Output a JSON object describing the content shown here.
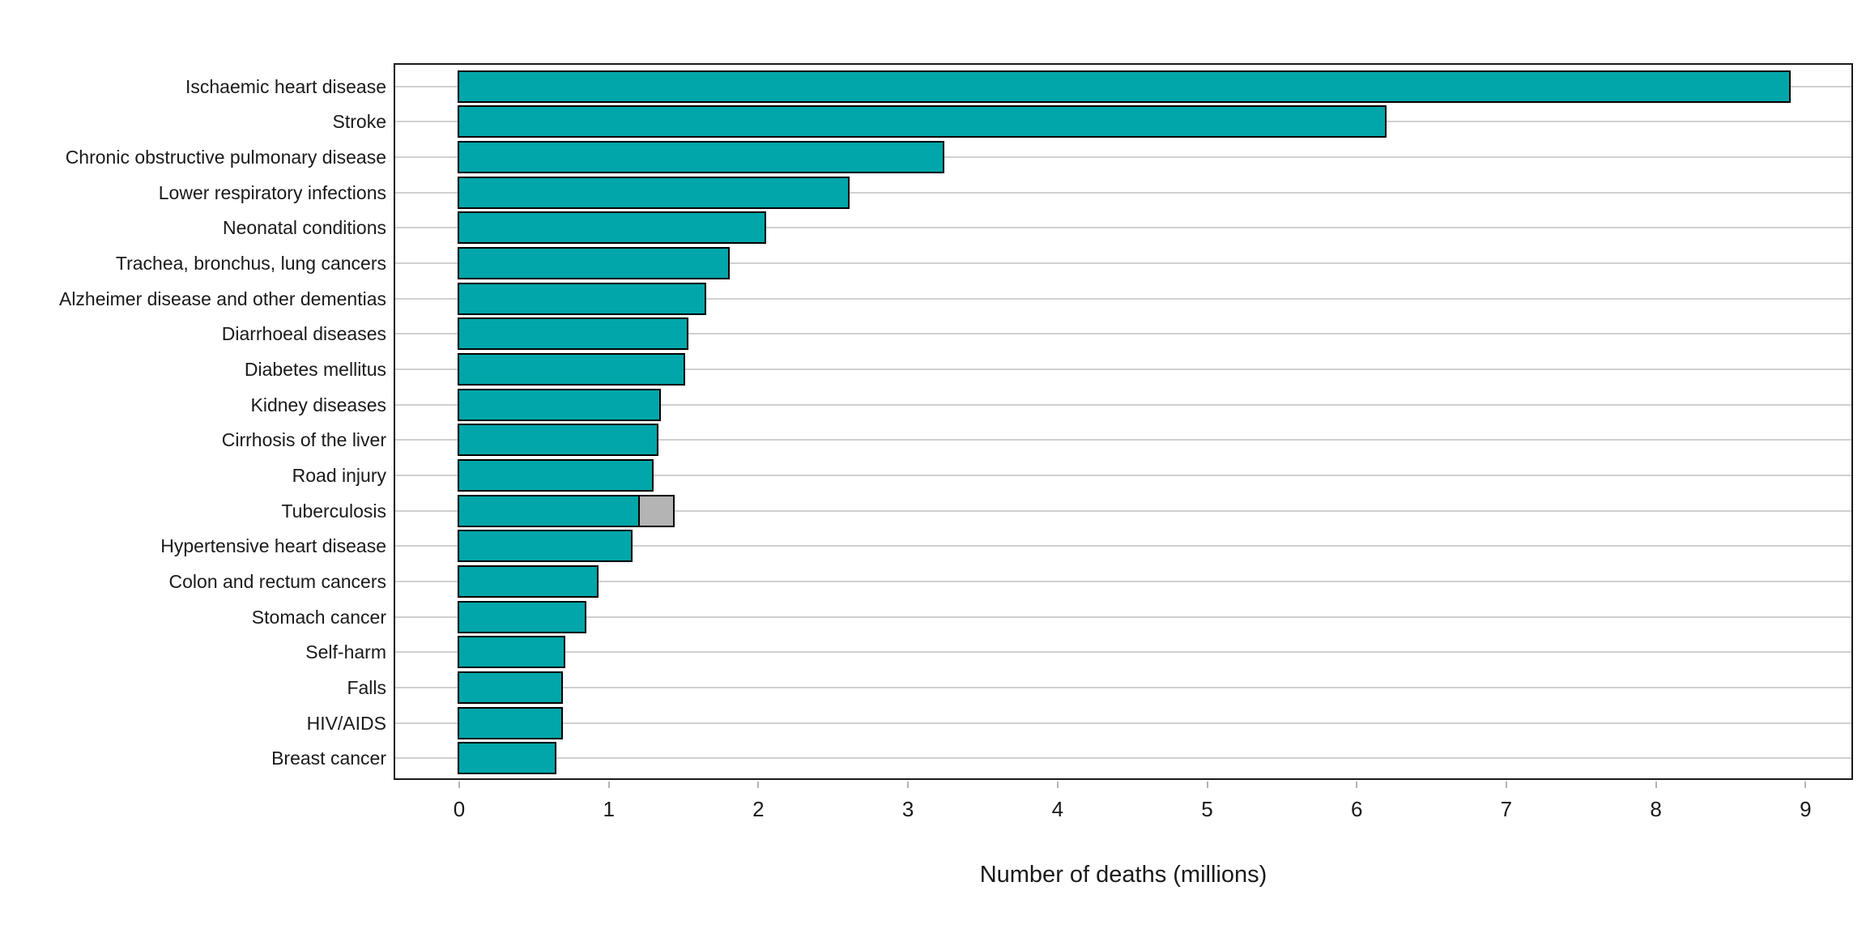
{
  "chart_data": {
    "type": "bar",
    "orientation": "horizontal",
    "title": "",
    "xlabel": "Number of deaths (millions)",
    "ylabel": "",
    "x_ticks": [
      0,
      1,
      2,
      3,
      4,
      5,
      6,
      7,
      8,
      9
    ],
    "xlim": [
      -0.44,
      9.32
    ],
    "grid": "horizontal-only",
    "legend": "none",
    "categories": [
      "Ischaemic heart disease",
      "Stroke",
      "Chronic obstructive pulmonary disease",
      "Lower respiratory infections",
      "Neonatal conditions",
      "Trachea, bronchus, lung cancers",
      "Alzheimer disease and other dementias",
      "Diarrhoeal diseases",
      "Diabetes mellitus",
      "Kidney diseases",
      "Cirrhosis of the liver",
      "Road injury",
      "Tuberculosis",
      "Hypertensive heart disease",
      "Colon and rectum cancers",
      "Stomach cancer",
      "Self-harm",
      "Falls",
      "HIV/AIDS",
      "Breast cancer"
    ],
    "values": [
      8.89,
      6.19,
      3.23,
      2.6,
      2.04,
      1.8,
      1.64,
      1.52,
      1.5,
      1.34,
      1.32,
      1.29,
      1.21,
      1.15,
      0.92,
      0.84,
      0.7,
      0.68,
      0.68,
      0.64
    ],
    "secondary_segment": {
      "category": "Tuberculosis",
      "category_index": 12,
      "value": 0.22
    },
    "colors": {
      "bar_fill": "#00a6aa",
      "bar_border": "#000000",
      "secondary_fill": "#b4b4b4",
      "grid": "#d0d0d0",
      "panel_border": "#1a1a1a",
      "text": "#1a1a1a",
      "tick": "#b3b3b3"
    }
  }
}
